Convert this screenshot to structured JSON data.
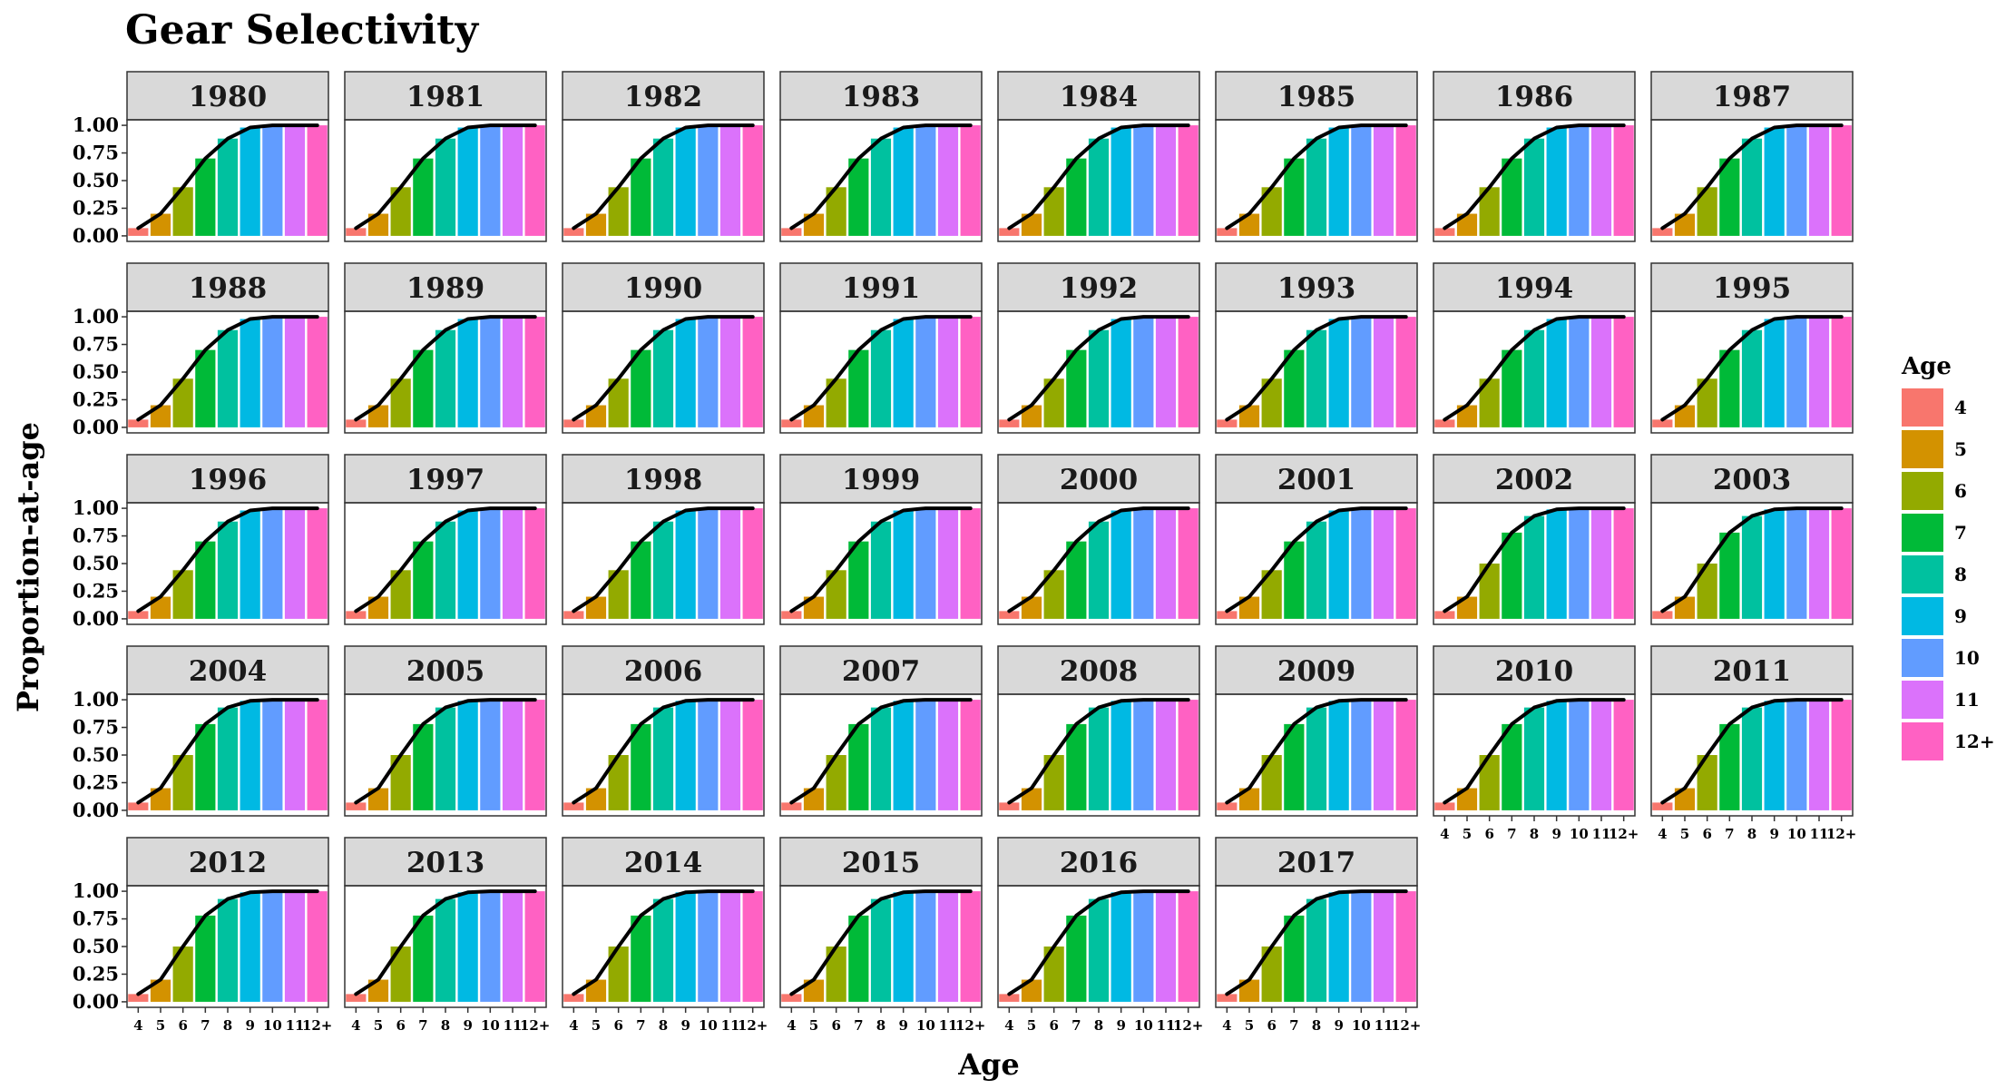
{
  "chart_data": {
    "type": "bar",
    "title": "Gear Selectivity",
    "xlabel": "Age",
    "ylabel": "Proportion-at-age",
    "ylim": [
      0,
      1
    ],
    "yticks": [
      "0.00",
      "0.25",
      "0.50",
      "0.75",
      "1.00"
    ],
    "categories": [
      "4",
      "5",
      "6",
      "7",
      "8",
      "9",
      "10",
      "11",
      "12+"
    ],
    "legend": {
      "title": "Age",
      "placement": "right",
      "entries": [
        "4",
        "5",
        "6",
        "7",
        "8",
        "9",
        "10",
        "11",
        "12+"
      ]
    },
    "colors": [
      "#F8766D",
      "#D39200",
      "#93AA00",
      "#00BA38",
      "#00C19F",
      "#00B9E3",
      "#619CFF",
      "#DB72FB",
      "#FF61C3"
    ],
    "line_color": "#000000",
    "grid": false,
    "panels": [
      {
        "year": "1980",
        "values": [
          0.07,
          0.2,
          0.44,
          0.7,
          0.88,
          0.98,
          1.0,
          1.0,
          1.0
        ]
      },
      {
        "year": "1981",
        "values": [
          0.07,
          0.2,
          0.44,
          0.7,
          0.88,
          0.98,
          1.0,
          1.0,
          1.0
        ]
      },
      {
        "year": "1982",
        "values": [
          0.07,
          0.2,
          0.44,
          0.7,
          0.88,
          0.98,
          1.0,
          1.0,
          1.0
        ]
      },
      {
        "year": "1983",
        "values": [
          0.07,
          0.2,
          0.44,
          0.7,
          0.88,
          0.98,
          1.0,
          1.0,
          1.0
        ]
      },
      {
        "year": "1984",
        "values": [
          0.07,
          0.2,
          0.44,
          0.7,
          0.88,
          0.98,
          1.0,
          1.0,
          1.0
        ]
      },
      {
        "year": "1985",
        "values": [
          0.07,
          0.2,
          0.44,
          0.7,
          0.88,
          0.98,
          1.0,
          1.0,
          1.0
        ]
      },
      {
        "year": "1986",
        "values": [
          0.07,
          0.2,
          0.44,
          0.7,
          0.88,
          0.98,
          1.0,
          1.0,
          1.0
        ]
      },
      {
        "year": "1987",
        "values": [
          0.07,
          0.2,
          0.44,
          0.7,
          0.88,
          0.98,
          1.0,
          1.0,
          1.0
        ]
      },
      {
        "year": "1988",
        "values": [
          0.07,
          0.2,
          0.44,
          0.7,
          0.88,
          0.98,
          1.0,
          1.0,
          1.0
        ]
      },
      {
        "year": "1989",
        "values": [
          0.07,
          0.2,
          0.44,
          0.7,
          0.88,
          0.98,
          1.0,
          1.0,
          1.0
        ]
      },
      {
        "year": "1990",
        "values": [
          0.07,
          0.2,
          0.44,
          0.7,
          0.88,
          0.98,
          1.0,
          1.0,
          1.0
        ]
      },
      {
        "year": "1991",
        "values": [
          0.07,
          0.2,
          0.44,
          0.7,
          0.88,
          0.98,
          1.0,
          1.0,
          1.0
        ]
      },
      {
        "year": "1992",
        "values": [
          0.07,
          0.2,
          0.44,
          0.7,
          0.88,
          0.98,
          1.0,
          1.0,
          1.0
        ]
      },
      {
        "year": "1993",
        "values": [
          0.07,
          0.2,
          0.44,
          0.7,
          0.88,
          0.98,
          1.0,
          1.0,
          1.0
        ]
      },
      {
        "year": "1994",
        "values": [
          0.07,
          0.2,
          0.44,
          0.7,
          0.88,
          0.98,
          1.0,
          1.0,
          1.0
        ]
      },
      {
        "year": "1995",
        "values": [
          0.07,
          0.2,
          0.44,
          0.7,
          0.88,
          0.98,
          1.0,
          1.0,
          1.0
        ]
      },
      {
        "year": "1996",
        "values": [
          0.07,
          0.2,
          0.44,
          0.7,
          0.88,
          0.98,
          1.0,
          1.0,
          1.0
        ]
      },
      {
        "year": "1997",
        "values": [
          0.07,
          0.2,
          0.44,
          0.7,
          0.88,
          0.98,
          1.0,
          1.0,
          1.0
        ]
      },
      {
        "year": "1998",
        "values": [
          0.07,
          0.2,
          0.44,
          0.7,
          0.88,
          0.98,
          1.0,
          1.0,
          1.0
        ]
      },
      {
        "year": "1999",
        "values": [
          0.07,
          0.2,
          0.44,
          0.7,
          0.88,
          0.98,
          1.0,
          1.0,
          1.0
        ]
      },
      {
        "year": "2000",
        "values": [
          0.07,
          0.2,
          0.44,
          0.7,
          0.88,
          0.98,
          1.0,
          1.0,
          1.0
        ]
      },
      {
        "year": "2001",
        "values": [
          0.07,
          0.2,
          0.44,
          0.7,
          0.88,
          0.98,
          1.0,
          1.0,
          1.0
        ]
      },
      {
        "year": "2002",
        "values": [
          0.07,
          0.2,
          0.5,
          0.78,
          0.93,
          0.99,
          1.0,
          1.0,
          1.0
        ]
      },
      {
        "year": "2003",
        "values": [
          0.07,
          0.2,
          0.5,
          0.78,
          0.93,
          0.99,
          1.0,
          1.0,
          1.0
        ]
      },
      {
        "year": "2004",
        "values": [
          0.07,
          0.2,
          0.5,
          0.78,
          0.93,
          0.99,
          1.0,
          1.0,
          1.0
        ]
      },
      {
        "year": "2005",
        "values": [
          0.07,
          0.2,
          0.5,
          0.78,
          0.93,
          0.99,
          1.0,
          1.0,
          1.0
        ]
      },
      {
        "year": "2006",
        "values": [
          0.07,
          0.2,
          0.5,
          0.78,
          0.93,
          0.99,
          1.0,
          1.0,
          1.0
        ]
      },
      {
        "year": "2007",
        "values": [
          0.07,
          0.2,
          0.5,
          0.78,
          0.93,
          0.99,
          1.0,
          1.0,
          1.0
        ]
      },
      {
        "year": "2008",
        "values": [
          0.07,
          0.2,
          0.5,
          0.78,
          0.93,
          0.99,
          1.0,
          1.0,
          1.0
        ]
      },
      {
        "year": "2009",
        "values": [
          0.07,
          0.2,
          0.5,
          0.78,
          0.93,
          0.99,
          1.0,
          1.0,
          1.0
        ]
      },
      {
        "year": "2010",
        "values": [
          0.07,
          0.2,
          0.5,
          0.78,
          0.93,
          0.99,
          1.0,
          1.0,
          1.0
        ]
      },
      {
        "year": "2011",
        "values": [
          0.07,
          0.2,
          0.5,
          0.78,
          0.93,
          0.99,
          1.0,
          1.0,
          1.0
        ]
      },
      {
        "year": "2012",
        "values": [
          0.07,
          0.2,
          0.5,
          0.78,
          0.93,
          0.99,
          1.0,
          1.0,
          1.0
        ]
      },
      {
        "year": "2013",
        "values": [
          0.07,
          0.2,
          0.5,
          0.78,
          0.93,
          0.99,
          1.0,
          1.0,
          1.0
        ]
      },
      {
        "year": "2014",
        "values": [
          0.07,
          0.2,
          0.5,
          0.78,
          0.93,
          0.99,
          1.0,
          1.0,
          1.0
        ]
      },
      {
        "year": "2015",
        "values": [
          0.07,
          0.2,
          0.5,
          0.78,
          0.93,
          0.99,
          1.0,
          1.0,
          1.0
        ]
      },
      {
        "year": "2016",
        "values": [
          0.07,
          0.2,
          0.5,
          0.78,
          0.93,
          0.99,
          1.0,
          1.0,
          1.0
        ]
      },
      {
        "year": "2017",
        "values": [
          0.07,
          0.2,
          0.5,
          0.78,
          0.93,
          0.99,
          1.0,
          1.0,
          1.0
        ]
      }
    ]
  }
}
